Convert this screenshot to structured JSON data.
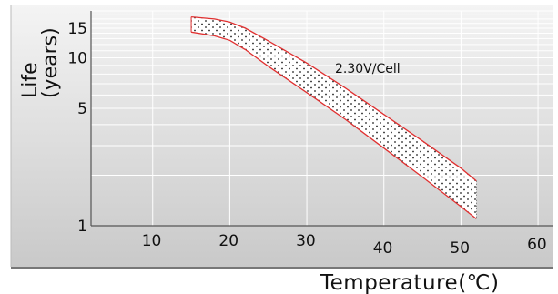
{
  "chart_data": {
    "type": "area",
    "title": "",
    "xlabel": "Temperature(℃)",
    "ylabel_line1": "Life",
    "ylabel_line2": "(years)",
    "x_ticks": [
      "10",
      "20",
      "30",
      "40",
      "50",
      "60"
    ],
    "y_ticks": [
      "1",
      "5",
      "10",
      "15"
    ],
    "x_range": [
      2,
      62
    ],
    "y_range": [
      1,
      19
    ],
    "y_scale": "log",
    "grid": true,
    "annotation": "2.30V/Cell",
    "series": [
      {
        "role": "upper-bound",
        "x": [
          15,
          18,
          20,
          22,
          25,
          30,
          35,
          40,
          45,
          50,
          52
        ],
        "y": [
          17.5,
          17.0,
          16.3,
          15.0,
          12.6,
          9.3,
          6.6,
          4.6,
          3.2,
          2.2,
          1.85
        ]
      },
      {
        "role": "lower-bound",
        "x": [
          15,
          18,
          20,
          22,
          25,
          30,
          35,
          40,
          45,
          50,
          52
        ],
        "y": [
          14.2,
          13.5,
          12.7,
          11.2,
          8.9,
          6.2,
          4.3,
          2.9,
          1.95,
          1.3,
          1.1
        ]
      }
    ],
    "colors": {
      "boundary": "#e03030",
      "band_dots": "#222222",
      "gradient_top": "#f4f4f4",
      "gradient_bottom": "#c9c9c9",
      "grid": "#ffffff",
      "frame": "#555555"
    }
  }
}
